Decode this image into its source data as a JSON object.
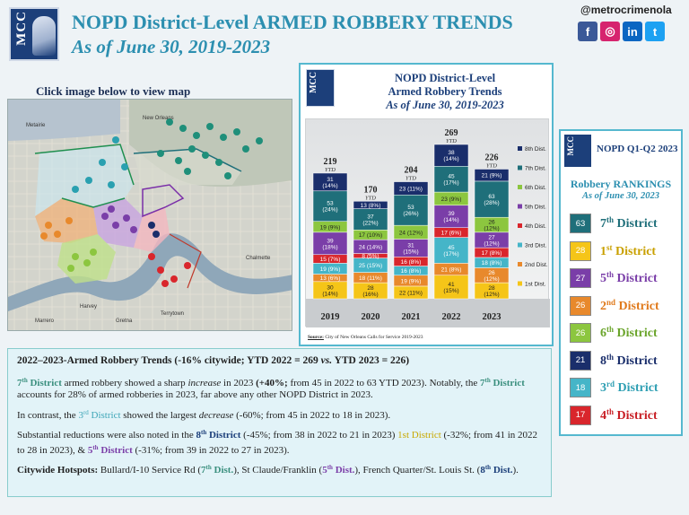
{
  "header": {
    "logo_text": "MCC",
    "title": "NOPD District-Level ARMED ROBBERY TRENDS",
    "subtitle": "As of June 30, 2019-2023",
    "handle": "@metrocrimenola",
    "social": [
      {
        "name": "facebook",
        "glyph": "f",
        "color": "#3b5998"
      },
      {
        "name": "instagram",
        "glyph": "◎",
        "color": "#d6246e"
      },
      {
        "name": "linkedin",
        "glyph": "in",
        "color": "#0a66c2"
      },
      {
        "name": "twitter",
        "glyph": "t",
        "color": "#1da1f2"
      }
    ]
  },
  "map": {
    "caption": "Click image below to view map",
    "labels": [
      "New Orleans",
      "Metairie",
      "Marrero",
      "Gretna",
      "Terrytown",
      "Chalmette",
      "Harvey"
    ]
  },
  "chart_panel": {
    "logo_text": "MCC",
    "title_line1": "NOPD District-Level",
    "title_line2": "Armed Robbery Trends",
    "title_line3": "As of June 30, 2019-2023",
    "source_label": "Source:",
    "source_text": "City of New Orleans Calls for Service 2019-2023"
  },
  "chart_data": {
    "type": "bar",
    "stacked": true,
    "title": "NOPD District-Level Armed Robbery Trends",
    "subtitle": "As of June 30, 2019-2023",
    "categories": [
      "2019",
      "2020",
      "2021",
      "2022",
      "2023"
    ],
    "totals": [
      "219",
      "170",
      "204",
      "269",
      "226"
    ],
    "total_suffix": "YTD",
    "series": [
      {
        "name": "1st Dist.",
        "color": "#f5c518",
        "values": [
          30,
          28,
          22,
          41,
          28
        ],
        "labels": [
          "30 (14%)",
          "28 (16%)",
          "22 (11%)",
          "41 (15%)",
          "28 (12%)"
        ]
      },
      {
        "name": "2nd Dist.",
        "color": "#e8892c",
        "values": [
          13,
          18,
          19,
          21,
          26
        ],
        "labels": [
          "13 (6%)",
          "18 (11%)",
          "19 (9%)",
          "21 (8%)",
          "26 (12%)"
        ]
      },
      {
        "name": "3rd Dist.",
        "color": "#45b5c8",
        "values": [
          19,
          25,
          16,
          45,
          18
        ],
        "labels": [
          "19 (9%)",
          "25 (15%)",
          "16 (8%)",
          "45 (17%)",
          "18 (8%)"
        ]
      },
      {
        "name": "4th Dist.",
        "color": "#d9262c",
        "values": [
          15,
          8,
          16,
          17,
          17
        ],
        "labels": [
          "15 (7%)",
          "8 (5%)",
          "16 (8%)",
          "17 (6%)",
          "17 (8%)"
        ]
      },
      {
        "name": "5th Dist.",
        "color": "#7a3ea8",
        "values": [
          39,
          24,
          31,
          39,
          27
        ],
        "labels": [
          "39 (18%)",
          "24 (14%)",
          "31 (15%)",
          "39 (14%)",
          "27 (12%)"
        ]
      },
      {
        "name": "6th Dist.",
        "color": "#8cc63f",
        "values": [
          19,
          17,
          24,
          23,
          26
        ],
        "labels": [
          "19 (9%)",
          "17 (10%)",
          "24 (12%)",
          "23 (9%)",
          "26 (12%)"
        ]
      },
      {
        "name": "7th Dist.",
        "color": "#1f6f7a",
        "values": [
          53,
          37,
          53,
          45,
          63
        ],
        "labels": [
          "53 (24%)",
          "37 (22%)",
          "53 (26%)",
          "45 (17%)",
          "63 (28%)"
        ]
      },
      {
        "name": "8th Dist.",
        "color": "#1a2e6b",
        "values": [
          31,
          13,
          23,
          38,
          21
        ],
        "labels": [
          "31 (14%)",
          "13 (8%)",
          "23 (11%)",
          "38 (14%)",
          "21 (9%)"
        ]
      }
    ]
  },
  "rankings": {
    "logo_text": "MCC",
    "header": "NOPD Q1-Q2 2023",
    "title": "Robbery RANKINGS",
    "subtitle": "As of June 30, 2023",
    "items": [
      {
        "value": "63",
        "num": "7",
        "sup": "th",
        "label": "District",
        "box_color": "#1f6f7a",
        "text_color": "#1f6f7a"
      },
      {
        "value": "28",
        "num": "1",
        "sup": "st",
        "label": "District",
        "box_color": "#f5c518",
        "text_color": "#c9a000"
      },
      {
        "value": "27",
        "num": "5",
        "sup": "th",
        "label": "District",
        "box_color": "#7a3ea8",
        "text_color": "#7a3ea8"
      },
      {
        "value": "26",
        "num": "2",
        "sup": "nd",
        "label": "District",
        "box_color": "#e8892c",
        "text_color": "#e07a1c"
      },
      {
        "value": "26",
        "num": "6",
        "sup": "th",
        "label": "District",
        "box_color": "#8cc63f",
        "text_color": "#6aa42a"
      },
      {
        "value": "21",
        "num": "8",
        "sup": "th",
        "label": "District",
        "box_color": "#1a2e6b",
        "text_color": "#1a2e6b"
      },
      {
        "value": "18",
        "num": "3",
        "sup": "rd",
        "label": "District",
        "box_color": "#45b5c8",
        "text_color": "#2f9fb3"
      },
      {
        "value": "17",
        "num": "4",
        "sup": "th",
        "label": "District",
        "box_color": "#d9262c",
        "text_color": "#c81e24"
      }
    ]
  },
  "summary": {
    "heading_a": "2022–2023-Armed Robbery Trends (-16% citywide; YTD 2022 = 269 ",
    "heading_vs": "vs.",
    "heading_b": " YTD 2023 = 226)",
    "p1": {
      "d7_num": "7",
      "d7_sup": "th",
      "d7_word": " District",
      "a": " armed robbery showed a sharp ",
      "em": "increase",
      "b": " in 2023 ",
      "pct": "(+40%;",
      "c": " from 45 in 2022 to 63 YTD 2023).  Notably, the ",
      "d7b_num": "7",
      "d7b_sup": "th",
      "d7b_word": " District",
      "d": " accounts for 28% of armed robberies in 2023, far above any other NOPD District in 2023."
    },
    "p2": {
      "a": "In contrast, the ",
      "d3_num": "3",
      "d3_sup": "rd",
      "d3_word": " District",
      "b": " showed the largest ",
      "em": "decrease",
      "c": " (-60%; from 45 in 2022 to 18 in 2023)."
    },
    "p3": {
      "a": "Substantial reductions were also noted in the ",
      "d8_num": "8",
      "d8_sup": "th",
      "d8_word": " District",
      "b": " (-45%; from 38 in 2022 to 21 in 2023) ",
      "d1": "1st District",
      "c": " (-32%; from 41 in 2022 to 28 in 2023), & ",
      "d5_num": "5",
      "d5_sup": "th",
      "d5_word": " District",
      "d": " (-31%; from 39 in 2022 to 27 in 2023)."
    },
    "p4": {
      "label": "Citywide Hotspots:",
      "a": " Bullard/I-10 Service Rd (",
      "d7_num": "7",
      "d7_sup": "th",
      "d7_word": " Dist.",
      "b": "), St Claude/Franklin (",
      "d5_num": "5",
      "d5_sup": "th",
      "d5_word": " Dist.",
      "c": "), French Quarter/St. Louis St. (",
      "d8_num": "8",
      "d8_sup": "th",
      "d8_word": " Dist.",
      "d": ")."
    }
  }
}
